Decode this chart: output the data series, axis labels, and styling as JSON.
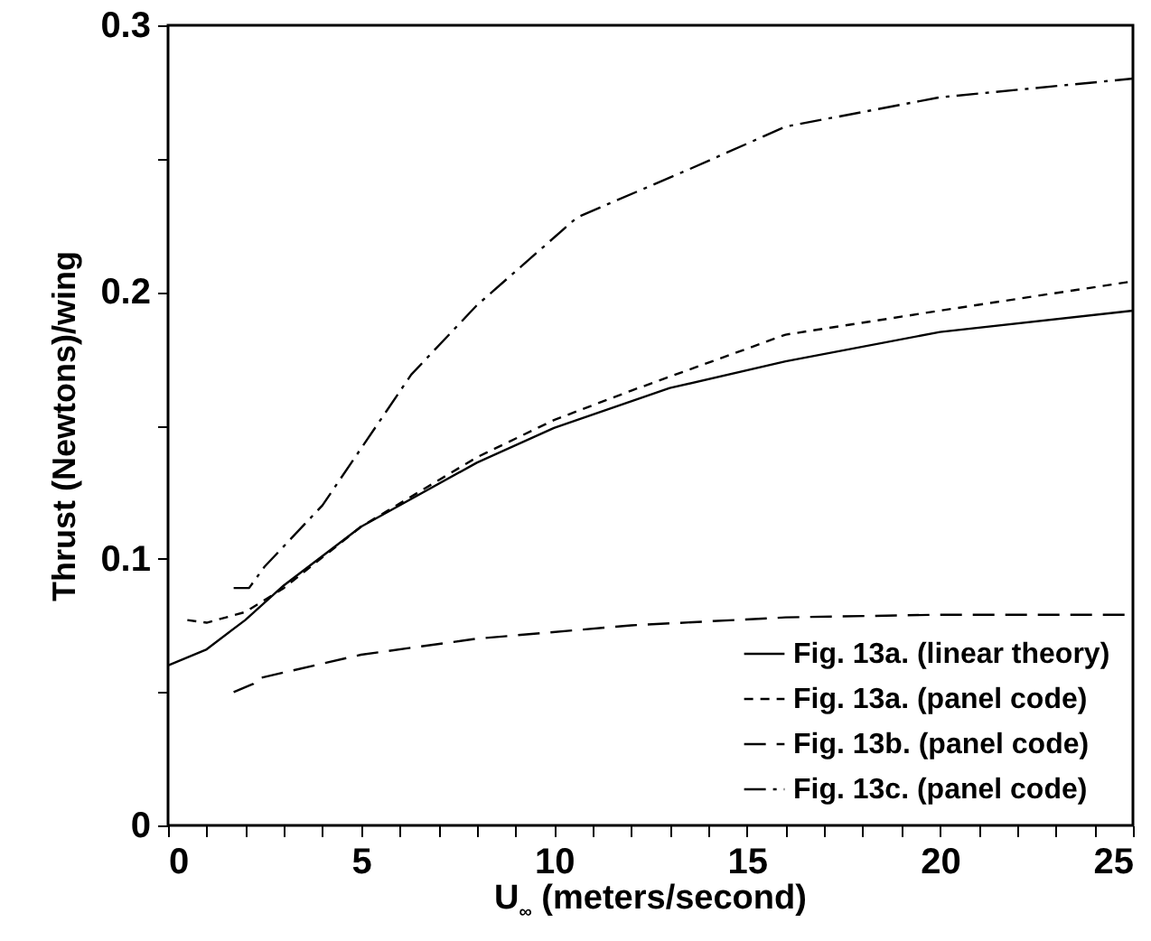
{
  "chart_data": {
    "type": "line",
    "xlabel": "U$_{∞}$ (meters/second)",
    "ylabel": "Thrust (Newtons)/wing",
    "xlim": [
      0,
      25
    ],
    "ylim": [
      0,
      0.3
    ],
    "xticks": [
      0,
      {
        "value": 1,
        "label": null
      },
      {
        "value": 2,
        "label": null
      },
      {
        "value": 3,
        "label": null
      },
      {
        "value": 4,
        "label": null
      },
      5,
      {
        "value": 6,
        "label": null
      },
      {
        "value": 7,
        "label": null
      },
      {
        "value": 8,
        "label": null
      },
      {
        "value": 9,
        "label": null
      },
      10,
      {
        "value": 11,
        "label": null
      },
      {
        "value": 12,
        "label": null
      },
      {
        "value": 13,
        "label": null
      },
      {
        "value": 14,
        "label": null
      },
      15,
      {
        "value": 16,
        "label": null
      },
      {
        "value": 17,
        "label": null
      },
      {
        "value": 18,
        "label": null
      },
      {
        "value": 19,
        "label": null
      },
      20,
      {
        "value": 21,
        "label": null
      },
      {
        "value": 22,
        "label": null
      },
      {
        "value": 23,
        "label": null
      },
      {
        "value": 24,
        "label": null
      },
      25
    ],
    "yticks": [
      0,
      {
        "value": 0.05,
        "label": null
      },
      0.1,
      {
        "value": 0.15,
        "label": null
      },
      0.2,
      {
        "value": 0.25,
        "label": null
      },
      0.3
    ],
    "legend": "bottom right",
    "grid": false,
    "series": [
      {
        "name": "Fig. 13a. (linear theory)",
        "color": "#000000",
        "line_style": "solid",
        "x": [
          0,
          1,
          2,
          3,
          5,
          8,
          10,
          13,
          16,
          20,
          25
        ],
        "values": [
          0.06,
          0.066,
          0.077,
          0.09,
          0.112,
          0.136,
          0.149,
          0.164,
          0.174,
          0.185,
          0.193
        ]
      },
      {
        "name": "Fig. 13a. (panel code)",
        "color": "#000000",
        "line_style": "dashed",
        "x": [
          0.5,
          1,
          2,
          3,
          5,
          8,
          10,
          12,
          16,
          20,
          25
        ],
        "values": [
          0.077,
          0.076,
          0.08,
          0.089,
          0.112,
          0.138,
          0.152,
          0.163,
          0.184,
          0.193,
          0.204
        ]
      },
      {
        "name": "Fig. 13b. (panel code)",
        "color": "#000000",
        "line_style": "longdash",
        "x": [
          1.7,
          2.2,
          2.3,
          5,
          8,
          12,
          16,
          20,
          25
        ],
        "values": [
          0.05,
          0.053,
          0.055,
          0.064,
          0.07,
          0.075,
          0.078,
          0.079,
          0.079
        ]
      },
      {
        "name": "Fig. 13c. (panel code)",
        "color": "#000000",
        "line_style": "dashdot",
        "x": [
          1.7,
          2.1,
          2.5,
          4,
          6.3,
          8,
          10.6,
          13.5,
          16,
          20,
          25
        ],
        "values": [
          0.089,
          0.089,
          0.097,
          0.12,
          0.169,
          0.195,
          0.228,
          0.246,
          0.262,
          0.273,
          0.28
        ]
      }
    ]
  }
}
